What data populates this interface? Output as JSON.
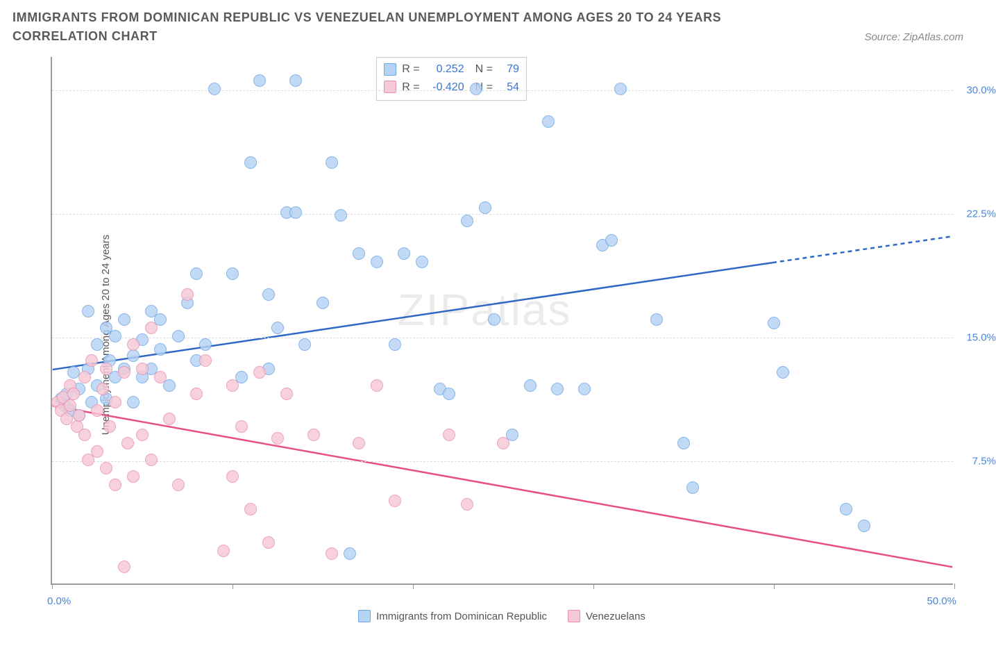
{
  "title": "IMMIGRANTS FROM DOMINICAN REPUBLIC VS VENEZUELAN UNEMPLOYMENT AMONG AGES 20 TO 24 YEARS CORRELATION CHART",
  "source": "Source: ZipAtlas.com",
  "watermark_bold": "ZIP",
  "watermark_thin": "atlas",
  "chart": {
    "type": "scatter",
    "y_label": "Unemployment Among Ages 20 to 24 years",
    "xlim": [
      0,
      50
    ],
    "ylim": [
      0,
      32
    ],
    "x_corner_min": "0.0%",
    "x_corner_max": "50.0%",
    "x_ticks": [
      0,
      10,
      20,
      30,
      40,
      50
    ],
    "y_ticks": [
      {
        "v": 7.5,
        "label": "7.5%"
      },
      {
        "v": 15.0,
        "label": "15.0%"
      },
      {
        "v": 22.5,
        "label": "22.5%"
      },
      {
        "v": 30.0,
        "label": "30.0%"
      }
    ],
    "grid_color": "#dddddd",
    "background": "#ffffff",
    "series": [
      {
        "key": "dominican",
        "name": "Immigrants from Dominican Republic",
        "fill": "#b5d3f3",
        "stroke": "#6ea7e4",
        "line_color": "#2f68c4",
        "marker_radius_px": 9,
        "r_label": "R =",
        "r_value": "0.252",
        "n_label": "N =",
        "n_value": "79",
        "trend": {
          "x1": 0,
          "y1": 13.0,
          "x2_solid": 40,
          "y2_solid": 19.5,
          "x2": 50,
          "y2": 21.1
        },
        "points": [
          [
            0.5,
            11.2
          ],
          [
            0.7,
            10.8
          ],
          [
            0.8,
            11.5
          ],
          [
            1.0,
            10.5
          ],
          [
            1.2,
            12.8
          ],
          [
            1.5,
            11.8
          ],
          [
            1.5,
            10.2
          ],
          [
            2.0,
            16.5
          ],
          [
            2.0,
            13.0
          ],
          [
            2.2,
            11.0
          ],
          [
            2.5,
            12.0
          ],
          [
            2.5,
            14.5
          ],
          [
            3.0,
            11.2
          ],
          [
            3.0,
            15.5
          ],
          [
            3.2,
            13.5
          ],
          [
            3.5,
            12.5
          ],
          [
            3.5,
            15.0
          ],
          [
            4.0,
            13.0
          ],
          [
            4.0,
            16.0
          ],
          [
            4.5,
            11.0
          ],
          [
            4.5,
            13.8
          ],
          [
            5.0,
            14.8
          ],
          [
            5.0,
            12.5
          ],
          [
            5.5,
            16.5
          ],
          [
            5.5,
            13.0
          ],
          [
            6.0,
            14.2
          ],
          [
            6.0,
            16.0
          ],
          [
            6.5,
            12.0
          ],
          [
            7.0,
            15.0
          ],
          [
            7.5,
            17.0
          ],
          [
            8.0,
            13.5
          ],
          [
            8.0,
            18.8
          ],
          [
            8.5,
            14.5
          ],
          [
            9.0,
            30.0
          ],
          [
            10.0,
            18.8
          ],
          [
            10.5,
            12.5
          ],
          [
            11.0,
            25.5
          ],
          [
            11.5,
            30.5
          ],
          [
            12.0,
            17.5
          ],
          [
            12.0,
            13.0
          ],
          [
            12.5,
            15.5
          ],
          [
            13.0,
            22.5
          ],
          [
            13.5,
            30.5
          ],
          [
            13.5,
            22.5
          ],
          [
            14.0,
            14.5
          ],
          [
            15.0,
            17.0
          ],
          [
            15.5,
            25.5
          ],
          [
            16.0,
            22.3
          ],
          [
            16.5,
            1.8
          ],
          [
            17.0,
            20.0
          ],
          [
            18.0,
            19.5
          ],
          [
            19.0,
            14.5
          ],
          [
            19.5,
            20.0
          ],
          [
            20.5,
            19.5
          ],
          [
            21.5,
            11.8
          ],
          [
            22.0,
            11.5
          ],
          [
            23.0,
            22.0
          ],
          [
            23.5,
            30.0
          ],
          [
            24.0,
            22.8
          ],
          [
            24.5,
            16.0
          ],
          [
            25.5,
            9.0
          ],
          [
            26.5,
            12.0
          ],
          [
            27.5,
            28.0
          ],
          [
            28.0,
            11.8
          ],
          [
            29.5,
            11.8
          ],
          [
            30.5,
            20.5
          ],
          [
            31.0,
            20.8
          ],
          [
            31.5,
            30.0
          ],
          [
            33.5,
            16.0
          ],
          [
            35.0,
            8.5
          ],
          [
            35.5,
            5.8
          ],
          [
            40.0,
            15.8
          ],
          [
            40.5,
            12.8
          ],
          [
            44.0,
            4.5
          ],
          [
            45.0,
            3.5
          ]
        ]
      },
      {
        "key": "venezuelan",
        "name": "Venezuelans",
        "fill": "#f6c9d6",
        "stroke": "#eb8fb0",
        "line_color": "#e84e86",
        "marker_radius_px": 9,
        "r_label": "R =",
        "r_value": "-0.420",
        "n_label": "N =",
        "n_value": "54",
        "trend": {
          "x1": 0,
          "y1": 10.8,
          "x2_solid": 50,
          "y2_solid": 1.0,
          "x2": 50,
          "y2": 1.0
        },
        "points": [
          [
            0.3,
            11.0
          ],
          [
            0.5,
            10.5
          ],
          [
            0.6,
            11.3
          ],
          [
            0.8,
            10.0
          ],
          [
            1.0,
            12.0
          ],
          [
            1.0,
            10.8
          ],
          [
            1.2,
            11.5
          ],
          [
            1.4,
            9.5
          ],
          [
            1.5,
            10.2
          ],
          [
            1.8,
            12.5
          ],
          [
            1.8,
            9.0
          ],
          [
            2.0,
            7.5
          ],
          [
            2.2,
            13.5
          ],
          [
            2.5,
            8.0
          ],
          [
            2.5,
            10.5
          ],
          [
            2.8,
            11.8
          ],
          [
            3.0,
            7.0
          ],
          [
            3.0,
            13.0
          ],
          [
            3.2,
            9.5
          ],
          [
            3.5,
            6.0
          ],
          [
            3.5,
            11.0
          ],
          [
            4.0,
            1.0
          ],
          [
            4.0,
            12.8
          ],
          [
            4.2,
            8.5
          ],
          [
            4.5,
            6.5
          ],
          [
            4.5,
            14.5
          ],
          [
            5.0,
            9.0
          ],
          [
            5.0,
            13.0
          ],
          [
            5.5,
            7.5
          ],
          [
            5.5,
            15.5
          ],
          [
            6.0,
            12.5
          ],
          [
            6.5,
            10.0
          ],
          [
            7.0,
            6.0
          ],
          [
            7.5,
            17.5
          ],
          [
            8.0,
            11.5
          ],
          [
            8.5,
            13.5
          ],
          [
            9.5,
            2.0
          ],
          [
            10.0,
            6.5
          ],
          [
            10.0,
            12.0
          ],
          [
            10.5,
            9.5
          ],
          [
            11.0,
            4.5
          ],
          [
            11.5,
            12.8
          ],
          [
            12.0,
            2.5
          ],
          [
            12.5,
            8.8
          ],
          [
            13.0,
            11.5
          ],
          [
            14.5,
            9.0
          ],
          [
            15.5,
            1.8
          ],
          [
            17.0,
            8.5
          ],
          [
            18.0,
            12.0
          ],
          [
            19.0,
            5.0
          ],
          [
            22.0,
            9.0
          ],
          [
            23.0,
            4.8
          ],
          [
            25.0,
            8.5
          ]
        ]
      }
    ]
  }
}
